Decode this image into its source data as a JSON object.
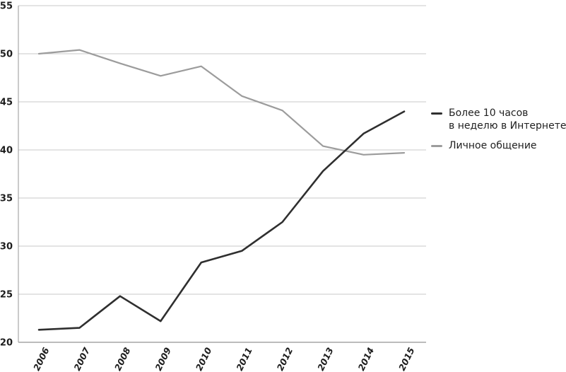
{
  "chart_data": {
    "type": "line",
    "title": "",
    "xlabel": "",
    "ylabel": "",
    "categories": [
      "2006",
      "2007",
      "2008",
      "2009",
      "2010",
      "2011",
      "2012",
      "2013",
      "2014",
      "2015"
    ],
    "series": [
      {
        "name": "Более 10 часов в неделю в Интернете",
        "legend_lines": [
          "Более 10 часов",
          "в неделю в Интернете"
        ],
        "color": "#2f2f2f",
        "values": [
          21.3,
          21.5,
          24.8,
          22.2,
          28.3,
          29.5,
          32.5,
          37.8,
          41.7,
          44.0
        ]
      },
      {
        "name": "Личное общение",
        "legend_lines": [
          "Личное общение"
        ],
        "color": "#9c9c9c",
        "values": [
          50.0,
          50.4,
          49.0,
          47.7,
          48.7,
          45.6,
          44.1,
          40.4,
          39.5,
          39.7
        ]
      }
    ],
    "ylim": [
      20,
      55
    ],
    "ytick_step": 5,
    "yticks": [
      20,
      25,
      30,
      35,
      40,
      45,
      50,
      55
    ],
    "grid": true,
    "legend_position": "right",
    "colors": {
      "gridline": "#c9c9c9",
      "axis": "#a6a6a6",
      "tick_label": "#1d1d1d",
      "background": "#ffffff"
    }
  }
}
